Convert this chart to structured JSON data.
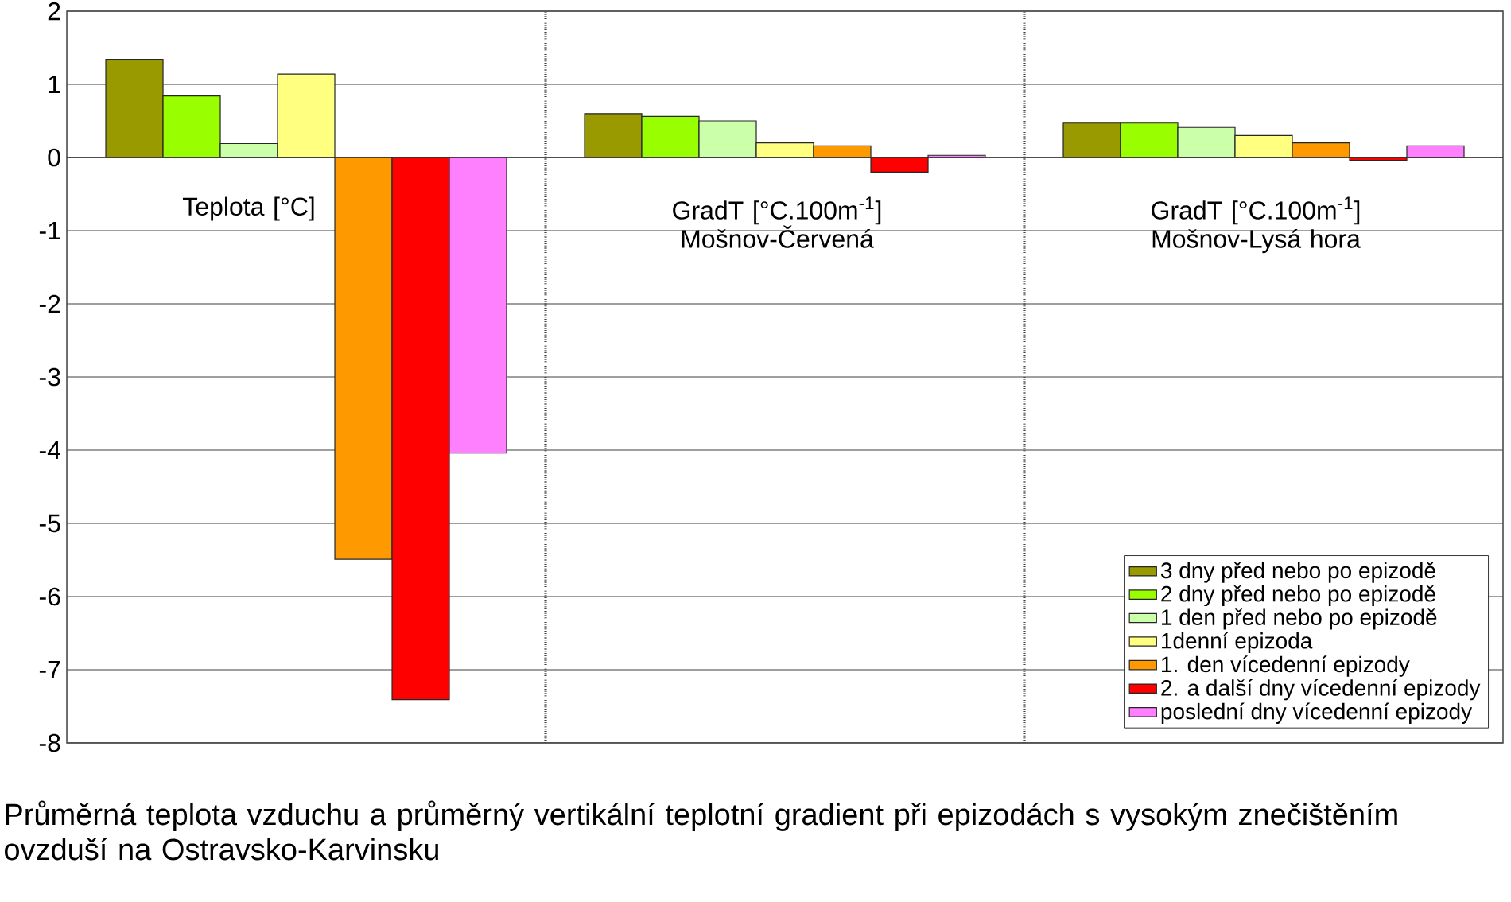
{
  "chart_data": {
    "type": "bar",
    "title": "Průměrná teplota vzduchu a průměrný vertikální teplotní gradient při epizodách s vysokým znečištěním ovzduší na Ostravsko-Karvinsku",
    "categories": [
      "Teplota [°C]",
      "GradT [°C.100m$^{-1}$] Mošnov-Červená",
      "GradT [°C.100m$^{-1}$] Mošnov-Lysá hora"
    ],
    "series": [
      {
        "name": "3 dny před nebo po epizodě",
        "color": "#999900",
        "values": [
          1.34,
          0.6,
          0.47
        ]
      },
      {
        "name": "2 dny před nebo po epizodě",
        "color": "#99ff00",
        "values": [
          0.84,
          0.56,
          0.47
        ]
      },
      {
        "name": "1 den před nebo po epizodě",
        "color": "#ccffaa",
        "values": [
          0.19,
          0.5,
          0.41
        ]
      },
      {
        "name": "1denní epizoda",
        "color": "#ffff80",
        "values": [
          1.14,
          0.2,
          0.3
        ]
      },
      {
        "name": "1. den vícedenní epizody",
        "color": "#ff9900",
        "values": [
          -5.49,
          0.16,
          0.2
        ]
      },
      {
        "name": "2. a další dny vícedenní epizody",
        "color": "#ff0000",
        "values": [
          -7.41,
          -0.2,
          -0.04
        ]
      },
      {
        "name": "poslední dny vícedenní epizody",
        "color": "#ff80ff",
        "values": [
          -4.04,
          0.03,
          0.16
        ]
      }
    ],
    "ylim": [
      -8,
      2
    ],
    "yticks": [
      -8,
      -7,
      -6,
      -5,
      -4,
      -3,
      -2,
      -1,
      0,
      1,
      2
    ],
    "grid": "y",
    "legend": "bottom right"
  }
}
